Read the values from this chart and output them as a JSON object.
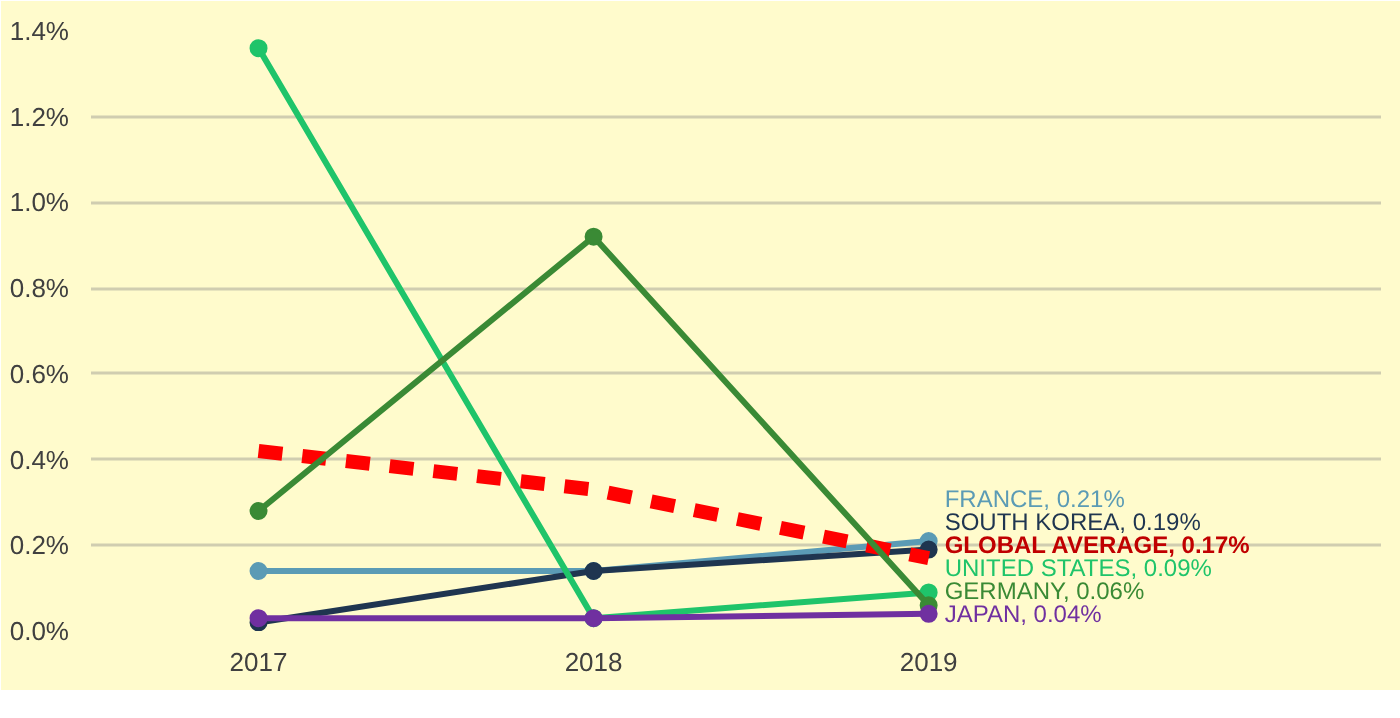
{
  "chart_data": {
    "type": "line",
    "categories": [
      "2017",
      "2018",
      "2019"
    ],
    "ylim": [
      0,
      1.4
    ],
    "yticks": [
      {
        "value": 0,
        "label": "0.0%"
      },
      {
        "value": 0.2,
        "label": "0.2%"
      },
      {
        "value": 0.4,
        "label": "0.4%"
      },
      {
        "value": 0.6,
        "label": "0.6%"
      },
      {
        "value": 0.8,
        "label": "0.8%"
      },
      {
        "value": 1.0,
        "label": "1.0%"
      },
      {
        "value": 1.2,
        "label": "1.2%"
      },
      {
        "value": 1.4,
        "label": "1.4%"
      }
    ],
    "grid": "y",
    "legend": false,
    "series": [
      {
        "name": "FRANCE, 0.21%",
        "color": "#5b9bb5",
        "values": [
          0.14,
          0.14,
          0.21
        ],
        "marker": "circle",
        "line_style": "solid"
      },
      {
        "name": "SOUTH KOREA, 0.19%",
        "color": "#1f3550",
        "values": [
          0.02,
          0.14,
          0.19
        ],
        "marker": "circle",
        "line_style": "solid"
      },
      {
        "name": "GLOBAL AVERAGE, 0.17%",
        "color": "#ff0000",
        "values": [
          0.42,
          0.33,
          0.17
        ],
        "marker": "none",
        "line_style": "dashed"
      },
      {
        "name": "UNITED STATES, 0.09%",
        "color": "#1fc46a",
        "values": [
          1.36,
          0.03,
          0.09
        ],
        "marker": "circle",
        "line_style": "solid"
      },
      {
        "name": "GERMANY, 0.06%",
        "color": "#3a8a35",
        "values": [
          0.28,
          0.92,
          0.06
        ],
        "marker": "circle",
        "line_style": "solid"
      },
      {
        "name": "JAPAN, 0.04%",
        "color": "#7030a0",
        "values": [
          0.03,
          0.03,
          0.04
        ],
        "marker": "circle",
        "line_style": "solid"
      }
    ]
  }
}
